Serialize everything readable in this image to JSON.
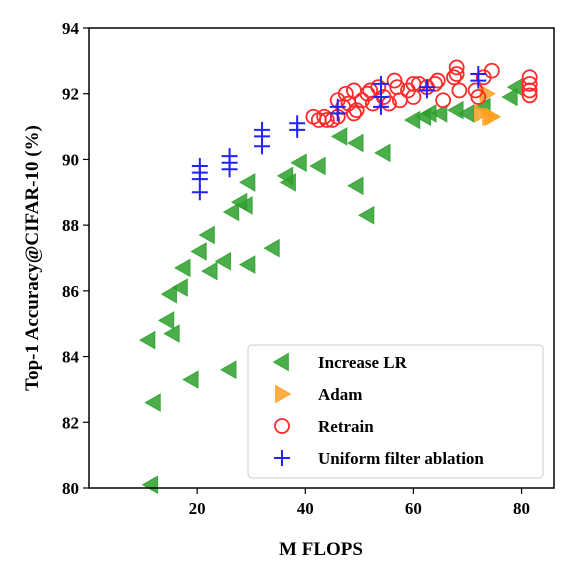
{
  "chart_data": {
    "type": "scatter",
    "title": "",
    "xlabel": "M FLOPS",
    "ylabel": "Top-1 Accuracy@CIFAR-10 (%)",
    "xlim": [
      0,
      86
    ],
    "ylim": [
      80,
      94
    ],
    "xticks": [
      20,
      40,
      60,
      80
    ],
    "yticks": [
      80,
      82,
      84,
      86,
      88,
      90,
      92,
      94
    ],
    "grid": false,
    "legend_position": "lower-right",
    "series": [
      {
        "name": "Increase LR",
        "marker": "triangle-left",
        "color": "#2ca02c",
        "points": [
          [
            11,
            84.5
          ],
          [
            12,
            82.6
          ],
          [
            11.5,
            80.1
          ],
          [
            14.5,
            85.1
          ],
          [
            15,
            85.9
          ],
          [
            15.5,
            84.7
          ],
          [
            17,
            86.1
          ],
          [
            17.5,
            86.7
          ],
          [
            19,
            83.3
          ],
          [
            20.5,
            87.2
          ],
          [
            22,
            87.7
          ],
          [
            22.5,
            86.6
          ],
          [
            25,
            86.9
          ],
          [
            26,
            83.6
          ],
          [
            26.5,
            88.4
          ],
          [
            28,
            88.7
          ],
          [
            29,
            88.6
          ],
          [
            29.5,
            89.3
          ],
          [
            29.5,
            86.8
          ],
          [
            34,
            87.3
          ],
          [
            36.5,
            89.5
          ],
          [
            37,
            89.3
          ],
          [
            39,
            89.9
          ],
          [
            42.5,
            89.8
          ],
          [
            46.5,
            90.7
          ],
          [
            49.5,
            90.5
          ],
          [
            49.5,
            89.2
          ],
          [
            51.5,
            88.3
          ],
          [
            54.5,
            90.2
          ],
          [
            60,
            91.2
          ],
          [
            62,
            91.3
          ],
          [
            63,
            91.4
          ],
          [
            65,
            91.4
          ],
          [
            68,
            91.5
          ],
          [
            70,
            91.4
          ],
          [
            73,
            91.6
          ],
          [
            78,
            91.9
          ],
          [
            79,
            92.2
          ]
        ]
      },
      {
        "name": "Adam",
        "marker": "triangle-right",
        "color": "#ffa020",
        "points": [
          [
            73.5,
            92
          ],
          [
            72.5,
            91.4
          ],
          [
            74,
            91.3
          ],
          [
            74.5,
            91.3
          ]
        ]
      },
      {
        "name": "Retrain",
        "marker": "circle-open",
        "color": "#ff2a2a",
        "points": [
          [
            41.5,
            91.3
          ],
          [
            42.5,
            91.2
          ],
          [
            43.5,
            91.3
          ],
          [
            44,
            91.2
          ],
          [
            45,
            91.2
          ],
          [
            46,
            91.3
          ],
          [
            46,
            91.8
          ],
          [
            47,
            91.6
          ],
          [
            47.5,
            92
          ],
          [
            48,
            91.7
          ],
          [
            49,
            92.1
          ],
          [
            49,
            91.4
          ],
          [
            49.5,
            91.5
          ],
          [
            50.5,
            91.8
          ],
          [
            51.5,
            92
          ],
          [
            52,
            92.1
          ],
          [
            52.5,
            91.7
          ],
          [
            53.5,
            92.2
          ],
          [
            54.5,
            91.9
          ],
          [
            55.5,
            91.7
          ],
          [
            56.5,
            92.4
          ],
          [
            57,
            92.2
          ],
          [
            57.5,
            91.8
          ],
          [
            59,
            92.1
          ],
          [
            60,
            92.3
          ],
          [
            60,
            91.9
          ],
          [
            61,
            92.3
          ],
          [
            62.5,
            92.2
          ],
          [
            64,
            92.3
          ],
          [
            64.5,
            92.4
          ],
          [
            65.5,
            91.8
          ],
          [
            67.5,
            92.5
          ],
          [
            68,
            92.6
          ],
          [
            68,
            92.8
          ],
          [
            68.5,
            92.1
          ],
          [
            71.5,
            92.1
          ],
          [
            72,
            91.9
          ],
          [
            73,
            92.5
          ],
          [
            74.5,
            92.7
          ],
          [
            81.5,
            92.5
          ],
          [
            81.5,
            92.3
          ],
          [
            81.5,
            92.1
          ],
          [
            81.5,
            91.95
          ]
        ]
      },
      {
        "name": "Uniform filter ablation",
        "marker": "plus",
        "color": "#2222ff",
        "points": [
          [
            20.5,
            89
          ],
          [
            20.5,
            89.4
          ],
          [
            20.5,
            89.6
          ],
          [
            20.5,
            89.8
          ],
          [
            26,
            89.7
          ],
          [
            26,
            89.9
          ],
          [
            26,
            90.1
          ],
          [
            32,
            90.4
          ],
          [
            32,
            90.7
          ],
          [
            32,
            90.9
          ],
          [
            38.5,
            90.9
          ],
          [
            38.5,
            91.1
          ],
          [
            46,
            91.4
          ],
          [
            46,
            91.6
          ],
          [
            54,
            91.6
          ],
          [
            54,
            91.9
          ],
          [
            54,
            92.3
          ],
          [
            62.5,
            92.1
          ],
          [
            62.5,
            92.2
          ],
          [
            72,
            92.4
          ],
          [
            72,
            92.6
          ]
        ]
      }
    ]
  }
}
